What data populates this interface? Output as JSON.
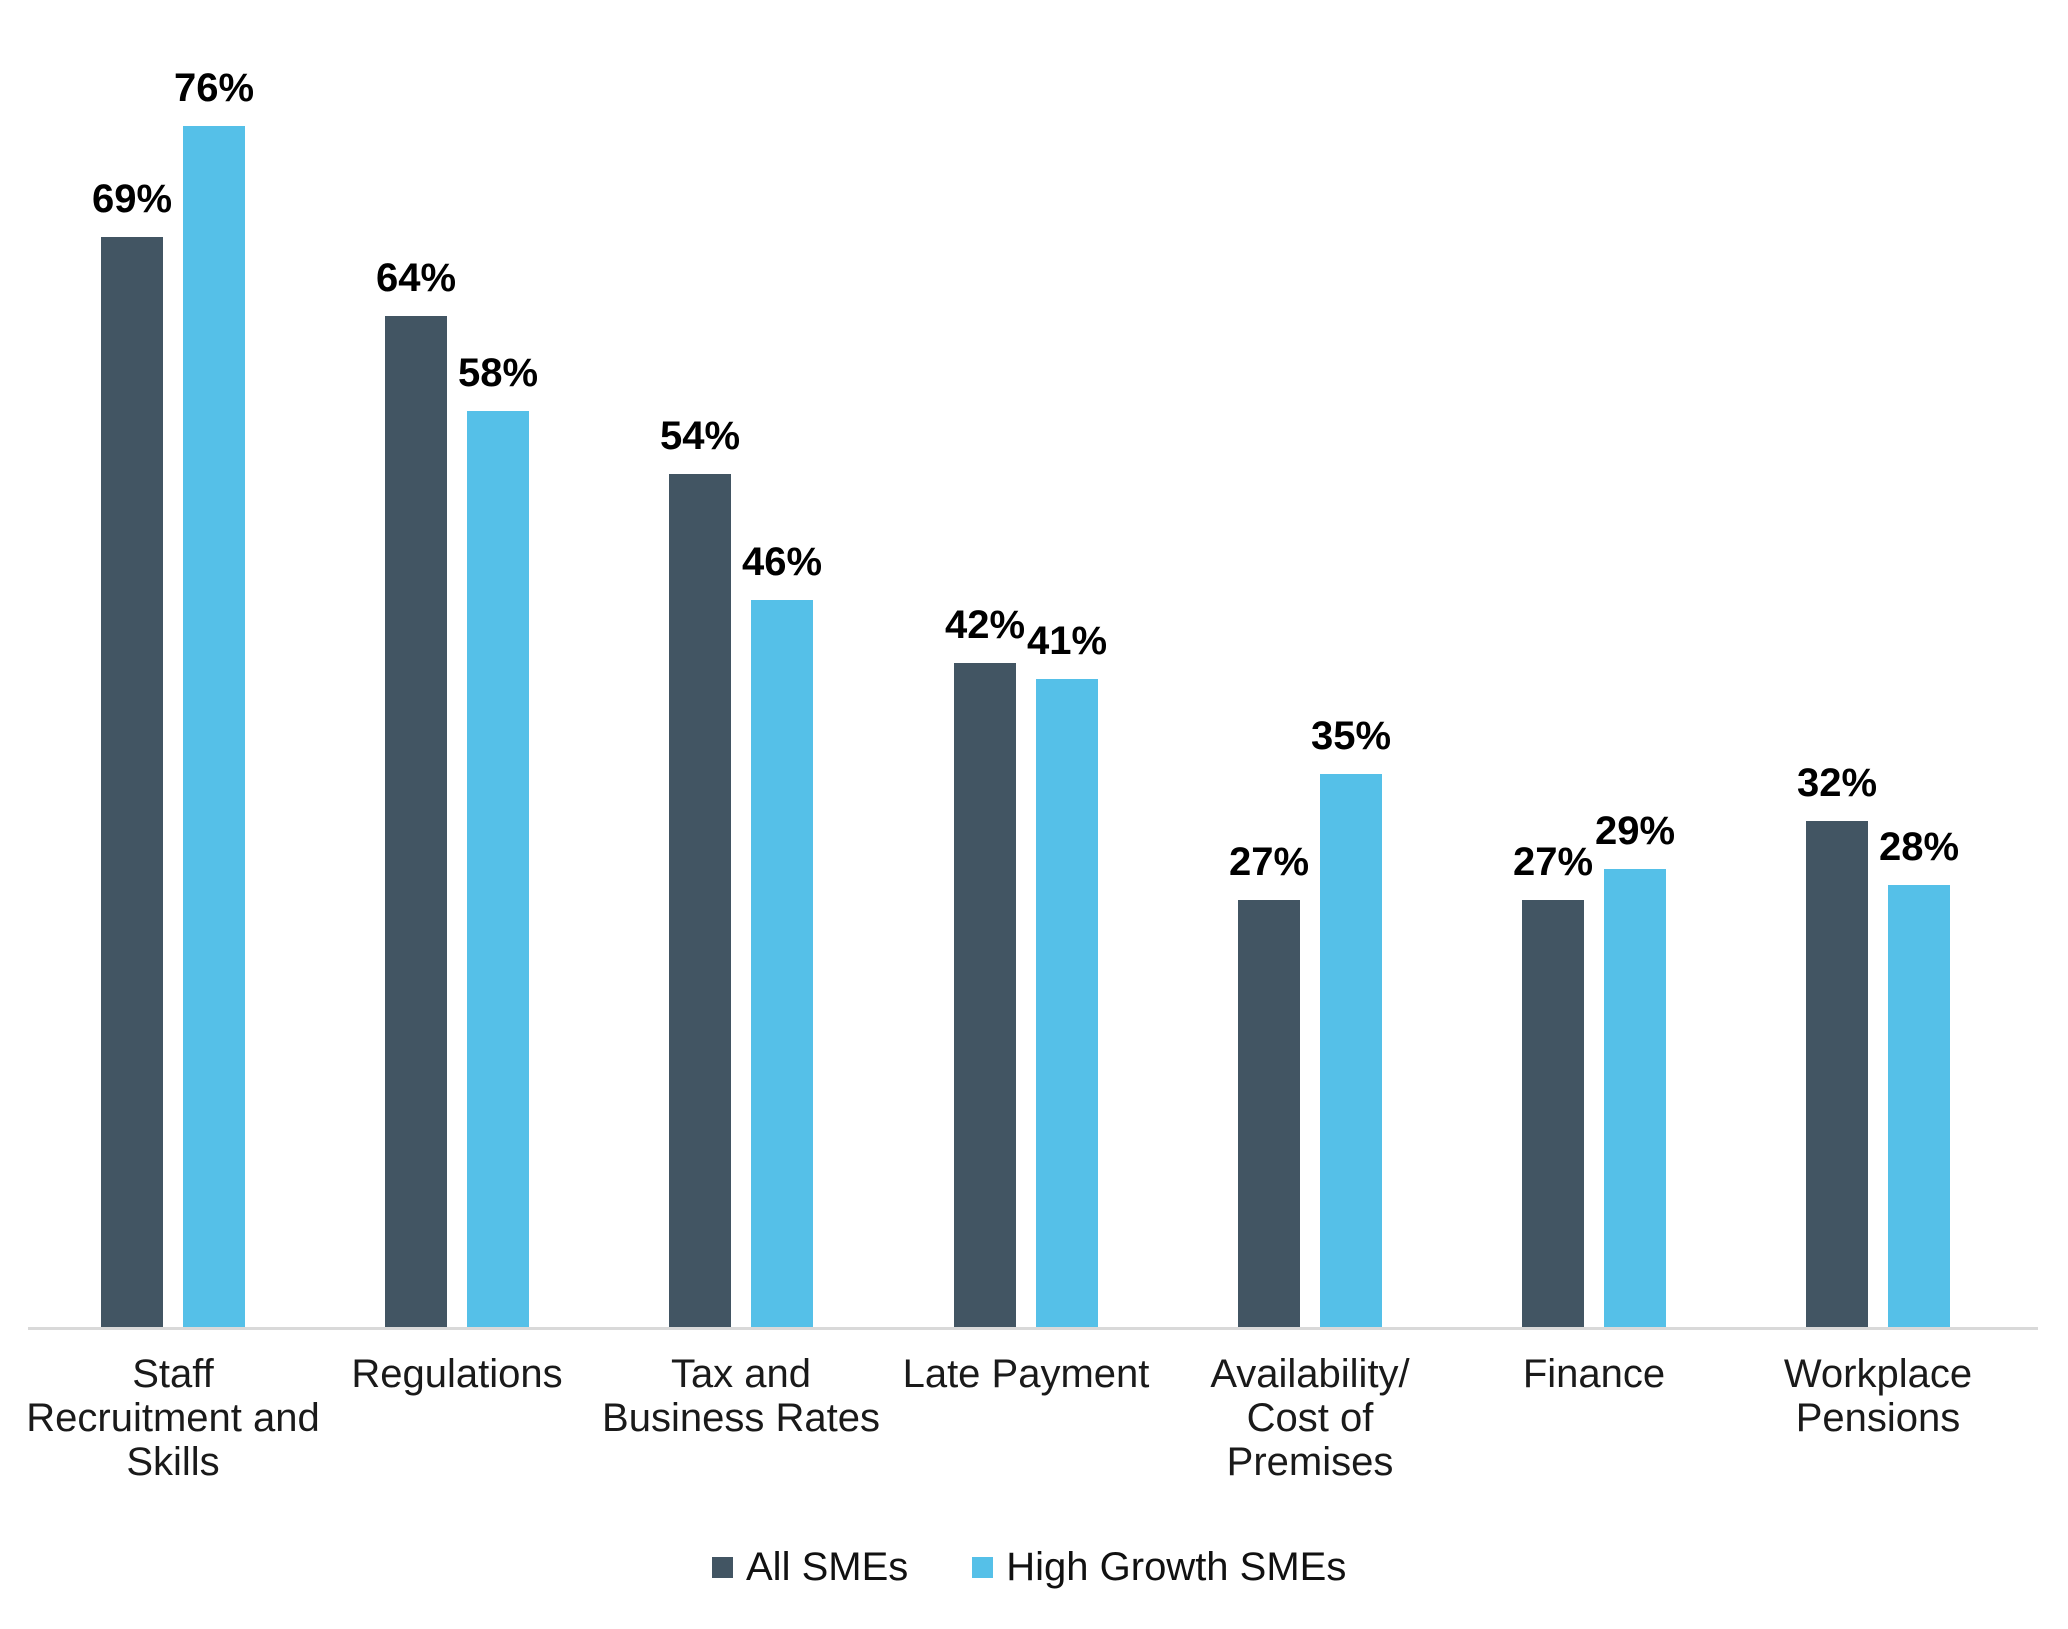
{
  "chart_data": {
    "type": "bar",
    "title": "",
    "xlabel": "",
    "ylabel": "",
    "value_suffix": "%",
    "ylim": [
      0,
      80
    ],
    "grid": false,
    "legend_position": "bottom",
    "categories": [
      "Staff Recruitment and Skills",
      "Regulations",
      "Tax and Business Rates",
      "Late Payment",
      "Availability/ Cost of Premises",
      "Finance",
      "Workplace Pensions"
    ],
    "category_lines": [
      [
        "Staff",
        "Recruitment and",
        "Skills"
      ],
      [
        "Regulations"
      ],
      [
        "Tax and",
        "Business Rates"
      ],
      [
        "Late Payment"
      ],
      [
        "Availability/",
        "Cost of",
        "Premises"
      ],
      [
        "Finance"
      ],
      [
        "Workplace",
        "Pensions"
      ]
    ],
    "series": [
      {
        "name": "All SMEs",
        "color": "#425563",
        "values": [
          69,
          64,
          54,
          42,
          27,
          27,
          32
        ]
      },
      {
        "name": "High Growth SMEs",
        "color": "#55C0E8",
        "values": [
          76,
          58,
          46,
          41,
          35,
          29,
          28
        ]
      }
    ]
  },
  "colors": {
    "axis_line": "#D9D9D9",
    "value_label_text": "#000000",
    "category_label_text": "#1A1A1A",
    "background": "#FFFFFF"
  }
}
